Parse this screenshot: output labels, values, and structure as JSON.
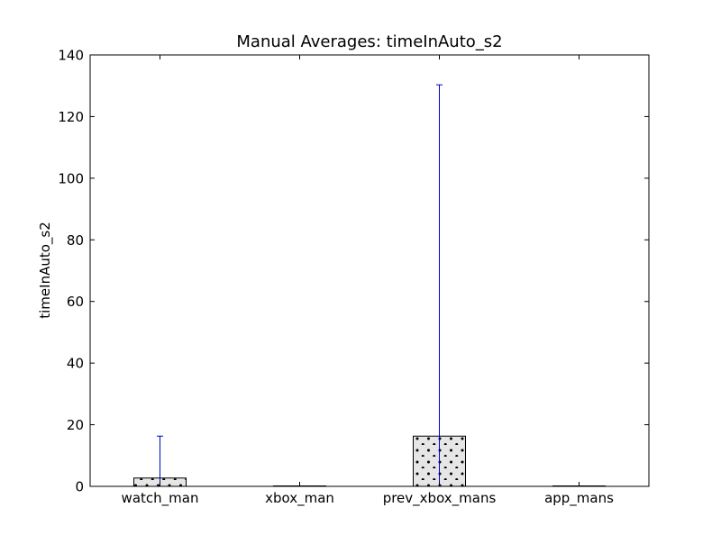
{
  "chart_data": {
    "type": "bar",
    "title": "Manual Averages: timeInAuto_s2",
    "xlabel": "",
    "ylabel": "timeInAuto_s2",
    "categories": [
      "watch_man",
      "xbox_man",
      "prev_xbox_mans",
      "app_mans"
    ],
    "values": [
      2.7,
      0,
      16.3,
      0
    ],
    "error_upper": [
      16.3,
      0,
      130.3,
      0
    ],
    "error_lower": [
      0,
      0,
      0,
      0
    ],
    "ylim": [
      0,
      140
    ],
    "yticks": [
      "0",
      "20",
      "40",
      "60",
      "80",
      "100",
      "120",
      "140"
    ],
    "grid": false,
    "legend": "none",
    "colors": {
      "bar_fill": "#e6e6e6",
      "bar_edge": "#000000",
      "hatch": "#000000",
      "errorbar": "#0000cc",
      "axes": "#000000"
    }
  }
}
